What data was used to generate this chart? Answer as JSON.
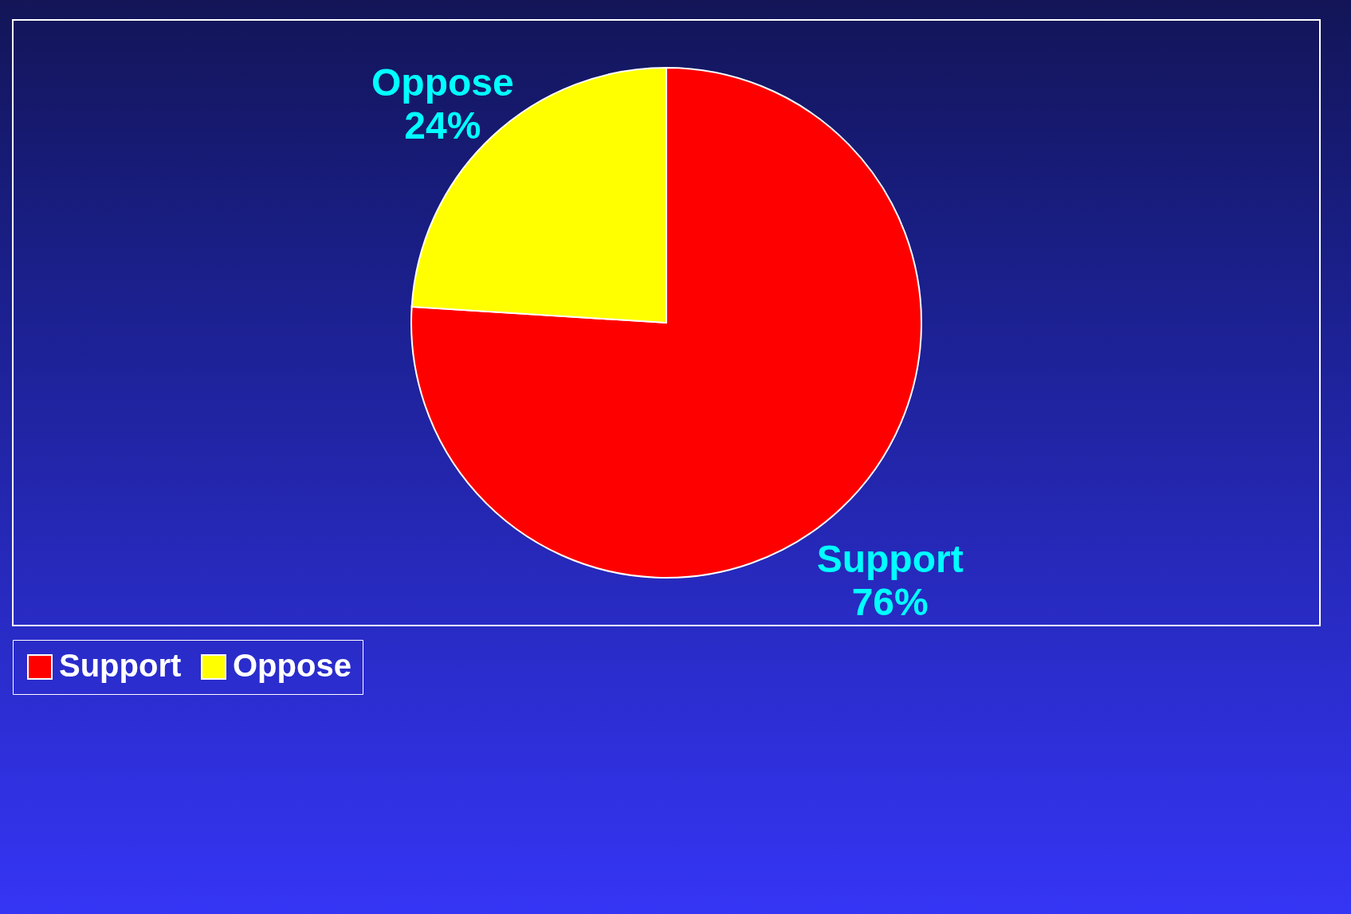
{
  "chart_data": {
    "type": "pie",
    "categories": [
      "Support",
      "Oppose"
    ],
    "values": [
      76,
      24
    ],
    "colors": [
      "#ff0000",
      "#ffff00"
    ],
    "value_labels": [
      "76%",
      "24%"
    ],
    "legend": "bottom"
  }
}
